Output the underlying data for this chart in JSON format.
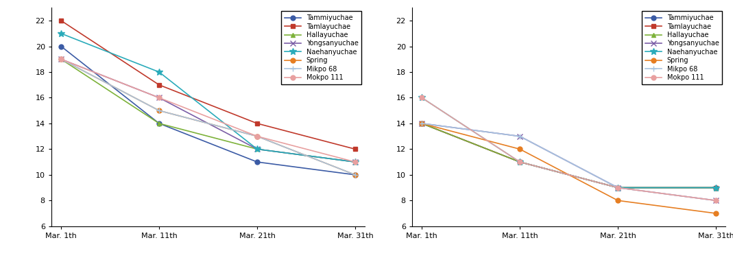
{
  "x_labels": [
    "Mar. 1th",
    "Mar. 11th",
    "Mar. 21th",
    "Mar. 31th"
  ],
  "left": {
    "Tammiyuchae": [
      20,
      14,
      11,
      10
    ],
    "Tamlayuchae": [
      22,
      17,
      14,
      12
    ],
    "Hallayuchae": [
      19,
      14,
      12,
      11
    ],
    "Yongsanyuchae": [
      19,
      16,
      12,
      11
    ],
    "Naehanyuchae": [
      21,
      18,
      12,
      11
    ],
    "Spring": [
      19,
      15,
      13,
      10
    ],
    "Mikpo 68": [
      19,
      15,
      13,
      10
    ],
    "Mokpo 111": [
      19,
      16,
      13,
      11
    ]
  },
  "right": {
    "Tammiyuchae": [
      14,
      11,
      9,
      9
    ],
    "Tamlayuchae": [
      14,
      11,
      9,
      9
    ],
    "Hallayuchae": [
      14,
      11,
      9,
      9
    ],
    "Yongsanyuchae": [
      14,
      13,
      9,
      8
    ],
    "Naehanyuchae": [
      16,
      11,
      9,
      9
    ],
    "Spring": [
      14,
      12,
      8,
      7
    ],
    "Mikpo 68": [
      14,
      13,
      9,
      8
    ],
    "Mokpo 111": [
      16,
      11,
      9,
      8
    ]
  },
  "series_styles": [
    {
      "name": "Tammiyuchae",
      "color": "#3B5BA5",
      "marker": "o",
      "markersize": 5
    },
    {
      "name": "Tamlayuchae",
      "color": "#C0392B",
      "marker": "s",
      "markersize": 5
    },
    {
      "name": "Hallayuchae",
      "color": "#7DB23A",
      "marker": "^",
      "markersize": 5
    },
    {
      "name": "Yongsanyuchae",
      "color": "#7B5EA7",
      "marker": "x",
      "markersize": 6
    },
    {
      "name": "Naehanyuchae",
      "color": "#2AABBA",
      "marker": "*",
      "markersize": 7
    },
    {
      "name": "Spring",
      "color": "#E67E22",
      "marker": "o",
      "markersize": 5
    },
    {
      "name": "Mikpo 68",
      "color": "#A8C4E0",
      "marker": "+",
      "markersize": 6
    },
    {
      "name": "Mokpo 111",
      "color": "#E8A0A0",
      "marker": "o",
      "markersize": 5
    }
  ],
  "ylim": [
    6,
    23
  ],
  "yticks": [
    6,
    8,
    10,
    12,
    14,
    16,
    18,
    20,
    22
  ],
  "figsize": [
    10.69,
    3.79
  ],
  "dpi": 100,
  "bg_color": "#FFFFFF",
  "plot_bg": "#FFFFFF"
}
